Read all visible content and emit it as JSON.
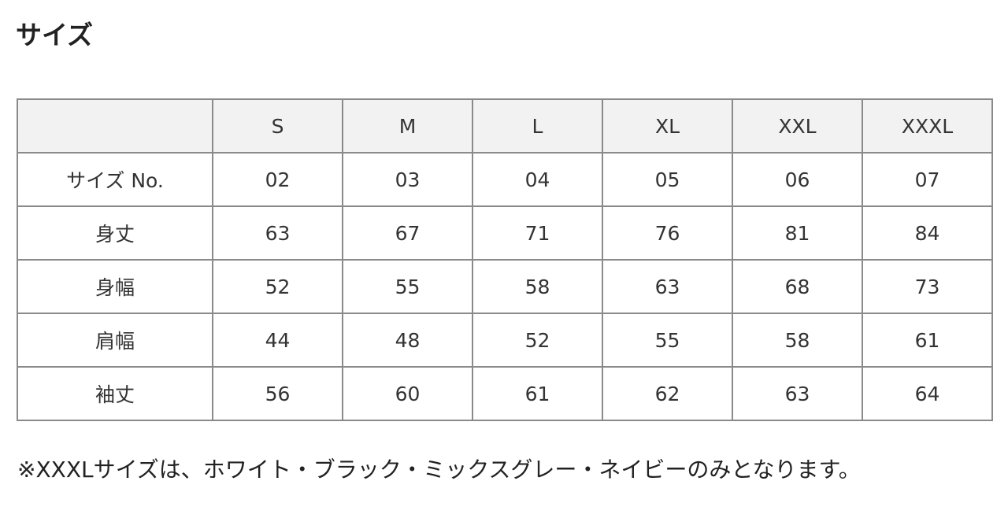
{
  "title": "サイズ",
  "table": {
    "headers": [
      "",
      "S",
      "M",
      "L",
      "XL",
      "XXL",
      "XXXL"
    ],
    "rows": [
      {
        "label": "サイズ No.",
        "values": [
          "02",
          "03",
          "04",
          "05",
          "06",
          "07"
        ]
      },
      {
        "label": "身丈",
        "values": [
          "63",
          "67",
          "71",
          "76",
          "81",
          "84"
        ]
      },
      {
        "label": "身幅",
        "values": [
          "52",
          "55",
          "58",
          "63",
          "68",
          "73"
        ]
      },
      {
        "label": "肩幅",
        "values": [
          "44",
          "48",
          "52",
          "55",
          "58",
          "61"
        ]
      },
      {
        "label": "袖丈",
        "values": [
          "56",
          "60",
          "61",
          "62",
          "63",
          "64"
        ]
      }
    ]
  },
  "note": "※XXXLサイズは、ホワイト・ブラック・ミックスグレー・ネイビーのみとなります。"
}
